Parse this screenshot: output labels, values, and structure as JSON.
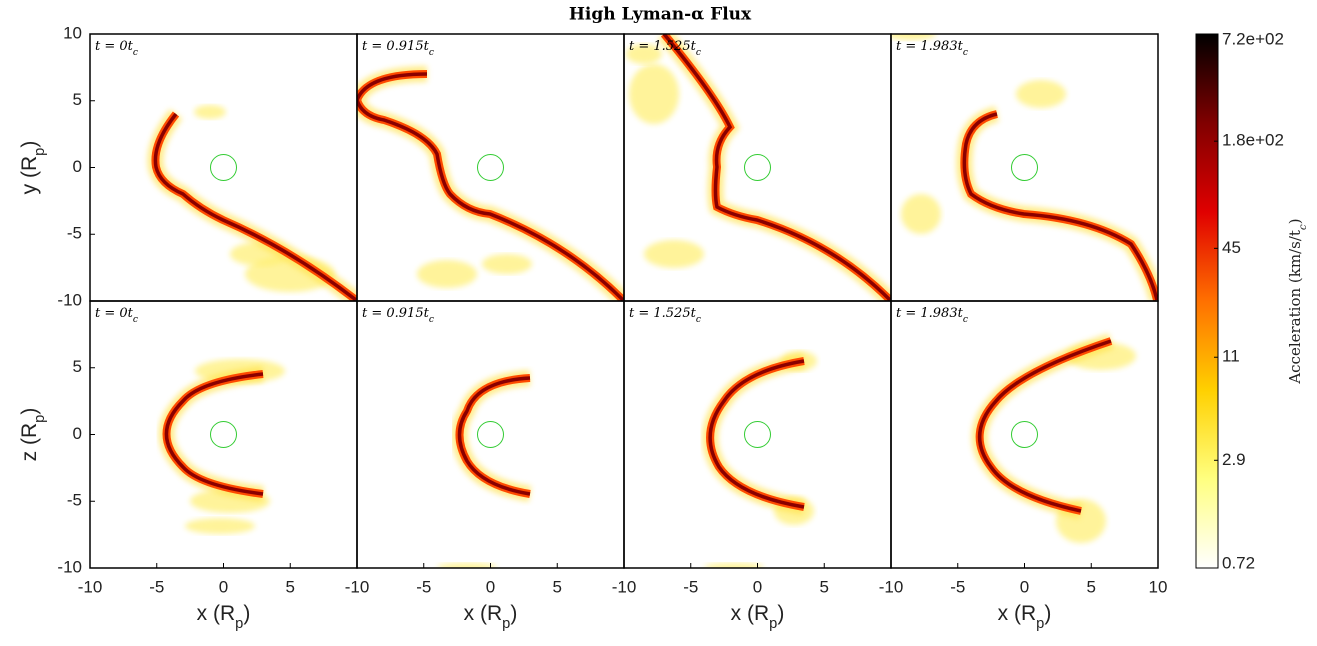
{
  "title": "High Lyman-α Flux",
  "colorbar": {
    "label": {
      "main": "Acceleration (km/s/t",
      "sub": "c",
      "end": ")"
    },
    "clim": [
      0.72,
      720
    ],
    "log": true,
    "ticks": [
      {
        "value": 720,
        "label": "7.2e+02"
      },
      {
        "value": 180,
        "label": "1.8e+02"
      },
      45,
      11,
      2.9,
      0.72
    ],
    "colors": [
      "#ffffff",
      "#ffff80",
      "#ffd000",
      "#ff7000",
      "#e00000",
      "#800000",
      "#000000"
    ]
  },
  "chart_data": [
    {
      "type": "image",
      "label": {
        "main": "t = 0t",
        "sub": "c"
      },
      "xlim": [
        -10,
        10
      ],
      "ylim": [
        -10,
        10
      ],
      "yticks": [
        -10,
        -5,
        0,
        5,
        10
      ],
      "ylabel": {
        "main": "y (R",
        "sub": "p",
        "end": ")"
      }
    },
    {
      "type": "image",
      "label": {
        "main": "t = 0.915t",
        "sub": "c"
      },
      "xlim": [
        -10,
        10
      ],
      "ylim": [
        -10,
        10
      ]
    },
    {
      "type": "image",
      "label": {
        "main": "t = 1.525t",
        "sub": "c"
      },
      "xlim": [
        -10,
        10
      ],
      "ylim": [
        -10,
        10
      ]
    },
    {
      "type": "image",
      "label": {
        "main": "t = 1.983t",
        "sub": "c"
      },
      "xlim": [
        -10,
        10
      ],
      "ylim": [
        -10,
        10
      ]
    },
    {
      "type": "image",
      "label": {
        "main": "t = 0t",
        "sub": "c"
      },
      "xlim": [
        -10,
        10
      ],
      "ylim": [
        -10,
        10
      ],
      "yticks": [
        -10,
        -5,
        0,
        5
      ],
      "xticks": [
        -10,
        -5,
        0,
        5
      ],
      "ylabel": {
        "main": "z (R",
        "sub": "p",
        "end": ")"
      },
      "xlabel": {
        "main": "x (R",
        "sub": "p",
        "end": ")"
      }
    },
    {
      "type": "image",
      "label": {
        "main": "t = 0.915t",
        "sub": "c"
      },
      "xlim": [
        -10,
        10
      ],
      "ylim": [
        -10,
        10
      ],
      "xticks": [
        -10,
        -5,
        0,
        5
      ],
      "xlabel": {
        "main": "x (R",
        "sub": "p",
        "end": ")"
      }
    },
    {
      "type": "image",
      "label": {
        "main": "t = 1.525t",
        "sub": "c"
      },
      "xlim": [
        -10,
        10
      ],
      "ylim": [
        -10,
        10
      ],
      "xticks": [
        -10,
        -5,
        0,
        5
      ],
      "xlabel": {
        "main": "x (R",
        "sub": "p",
        "end": ")"
      }
    },
    {
      "type": "image",
      "label": {
        "main": "t = 1.983t",
        "sub": "c"
      },
      "xlim": [
        -10,
        10
      ],
      "ylim": [
        -10,
        10
      ],
      "xticks": [
        -10,
        -5,
        0,
        5,
        10
      ],
      "xlabel": {
        "main": "x (R",
        "sub": "p",
        "end": ")"
      }
    }
  ]
}
